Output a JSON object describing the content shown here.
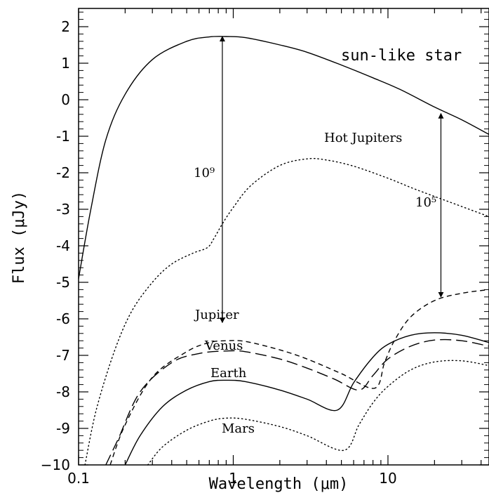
{
  "chart_data": {
    "type": "line",
    "xlabel": "Wavelength (μm)",
    "ylabel": "Flux (μJy)",
    "xscale": "log",
    "xlim": [
      0.1,
      45
    ],
    "ylim": [
      -10,
      2.5
    ],
    "x_ticks": [
      {
        "v": 0.1,
        "label": "0.1"
      },
      {
        "v": 1,
        "label": "1"
      },
      {
        "v": 10,
        "label": "10"
      }
    ],
    "y_ticks": [
      {
        "v": 2,
        "label": "2"
      },
      {
        "v": 1,
        "label": "1"
      },
      {
        "v": 0,
        "label": "0"
      },
      {
        "v": -1,
        "label": "-1"
      },
      {
        "v": -2,
        "label": "-2"
      },
      {
        "v": -3,
        "label": "-3"
      },
      {
        "v": -4,
        "label": "-4"
      },
      {
        "v": -5,
        "label": "-5"
      },
      {
        "v": -6,
        "label": "-6"
      },
      {
        "v": -7,
        "label": "-7"
      },
      {
        "v": -8,
        "label": "-8"
      },
      {
        "v": -9,
        "label": "-9"
      },
      {
        "v": -10,
        "label": "−10"
      }
    ],
    "grid": false,
    "series": [
      {
        "name": "sun-like star",
        "style": "solid",
        "x": [
          0.1,
          0.12,
          0.15,
          0.2,
          0.3,
          0.5,
          0.7,
          0.9,
          1.2,
          2,
          3,
          5,
          8,
          12,
          20,
          30,
          45
        ],
        "y": [
          -4.9,
          -3.0,
          -1.1,
          0.15,
          1.1,
          1.6,
          1.72,
          1.73,
          1.7,
          1.5,
          1.3,
          0.95,
          0.6,
          0.28,
          -0.2,
          -0.55,
          -0.95
        ]
      },
      {
        "name": "Hot Jupiters",
        "style": "dotted",
        "x": [
          0.11,
          0.13,
          0.17,
          0.22,
          0.3,
          0.4,
          0.55,
          0.68,
          0.75,
          0.85,
          1.0,
          1.3,
          2,
          3,
          4,
          6,
          10,
          15,
          25,
          45
        ],
        "y": [
          -10,
          -8.5,
          -6.9,
          -5.8,
          -5.0,
          -4.5,
          -4.2,
          -4.05,
          -3.8,
          -3.4,
          -2.95,
          -2.35,
          -1.8,
          -1.62,
          -1.65,
          -1.82,
          -2.15,
          -2.45,
          -2.8,
          -3.2
        ]
      },
      {
        "name": "Jupiter",
        "style": "short-dashed",
        "x": [
          0.16,
          0.2,
          0.3,
          0.5,
          0.7,
          0.9,
          1.2,
          2,
          3,
          5,
          8.2,
          9.5,
          11,
          14,
          20,
          30,
          45
        ],
        "y": [
          -10,
          -8.9,
          -7.6,
          -6.9,
          -6.65,
          -6.6,
          -6.62,
          -6.85,
          -7.1,
          -7.5,
          -7.9,
          -7.2,
          -6.6,
          -5.95,
          -5.5,
          -5.3,
          -5.2
        ]
      },
      {
        "name": "Venus",
        "style": "long-dashed",
        "x": [
          0.15,
          0.18,
          0.25,
          0.4,
          0.6,
          0.9,
          1.2,
          2,
          3,
          4.5,
          6.5,
          8,
          10,
          14,
          20,
          30,
          45
        ],
        "y": [
          -10,
          -9.3,
          -8.0,
          -7.2,
          -6.95,
          -6.88,
          -6.9,
          -7.1,
          -7.35,
          -7.65,
          -7.95,
          -7.55,
          -7.1,
          -6.75,
          -6.58,
          -6.6,
          -6.75
        ]
      },
      {
        "name": "Earth",
        "style": "solid",
        "x": [
          0.2,
          0.25,
          0.35,
          0.5,
          0.7,
          0.9,
          1.2,
          2,
          3,
          4.7,
          6,
          8,
          10,
          14,
          20,
          30,
          45
        ],
        "y": [
          -10,
          -9.2,
          -8.4,
          -7.95,
          -7.72,
          -7.68,
          -7.72,
          -7.95,
          -8.2,
          -8.5,
          -7.75,
          -7.05,
          -6.7,
          -6.45,
          -6.38,
          -6.45,
          -6.65
        ]
      },
      {
        "name": "Mars",
        "style": "dotted",
        "x": [
          0.28,
          0.35,
          0.5,
          0.7,
          0.9,
          1.2,
          2,
          3,
          5.2,
          6.5,
          8,
          10,
          14,
          20,
          30,
          45
        ],
        "y": [
          -10,
          -9.5,
          -9.05,
          -8.8,
          -8.72,
          -8.75,
          -8.95,
          -9.2,
          -9.6,
          -8.9,
          -8.3,
          -7.85,
          -7.4,
          -7.18,
          -7.15,
          -7.28
        ]
      }
    ],
    "annotations": [
      {
        "type": "arrow",
        "x": 0.85,
        "y_top": 1.73,
        "y_bottom": -6.1,
        "label": "10⁹"
      },
      {
        "type": "arrow",
        "x": 22,
        "y_top": -0.38,
        "y_bottom": -5.4,
        "label": "10⁵"
      }
    ],
    "labels": [
      {
        "text": "sun-like star"
      },
      {
        "text": "Hot Jupiters"
      },
      {
        "text": "Jupiter"
      },
      {
        "text": "Venus"
      },
      {
        "text": "Earth"
      },
      {
        "text": "Mars"
      }
    ]
  }
}
